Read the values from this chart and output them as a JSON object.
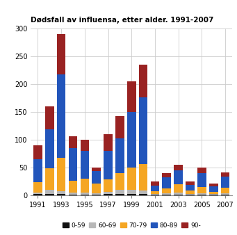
{
  "title": "Dødsfall av influensa, etter alder. 1991-2007",
  "years": [
    1991,
    1992,
    1993,
    1994,
    1995,
    1996,
    1997,
    1998,
    1999,
    2000,
    2001,
    2002,
    2003,
    2004,
    2005,
    2006,
    2007
  ],
  "age_groups": [
    "0-59",
    "60-69",
    "70-79",
    "80-89",
    "90-"
  ],
  "colors": [
    "#111111",
    "#b8b8b8",
    "#f5a623",
    "#2255bb",
    "#992222"
  ],
  "data": {
    "0-59": [
      2,
      2,
      2,
      1,
      1,
      1,
      2,
      2,
      2,
      2,
      1,
      1,
      1,
      1,
      1,
      1,
      1
    ],
    "60-69": [
      3,
      8,
      5,
      3,
      3,
      2,
      4,
      8,
      8,
      6,
      1,
      2,
      3,
      1,
      2,
      1,
      2
    ],
    "70-79": [
      18,
      38,
      60,
      22,
      26,
      18,
      22,
      30,
      40,
      48,
      5,
      9,
      16,
      6,
      12,
      4,
      10
    ],
    "80-89": [
      42,
      70,
      150,
      58,
      50,
      22,
      52,
      62,
      100,
      120,
      10,
      20,
      25,
      10,
      25,
      10,
      20
    ],
    "90-": [
      25,
      42,
      73,
      22,
      20,
      7,
      30,
      40,
      55,
      59,
      7,
      8,
      9,
      6,
      10,
      5,
      8
    ]
  },
  "ylim": [
    0,
    300
  ],
  "yticks": [
    0,
    50,
    100,
    150,
    200,
    250,
    300
  ],
  "background_color": "#ffffff",
  "grid_color": "#cccccc"
}
